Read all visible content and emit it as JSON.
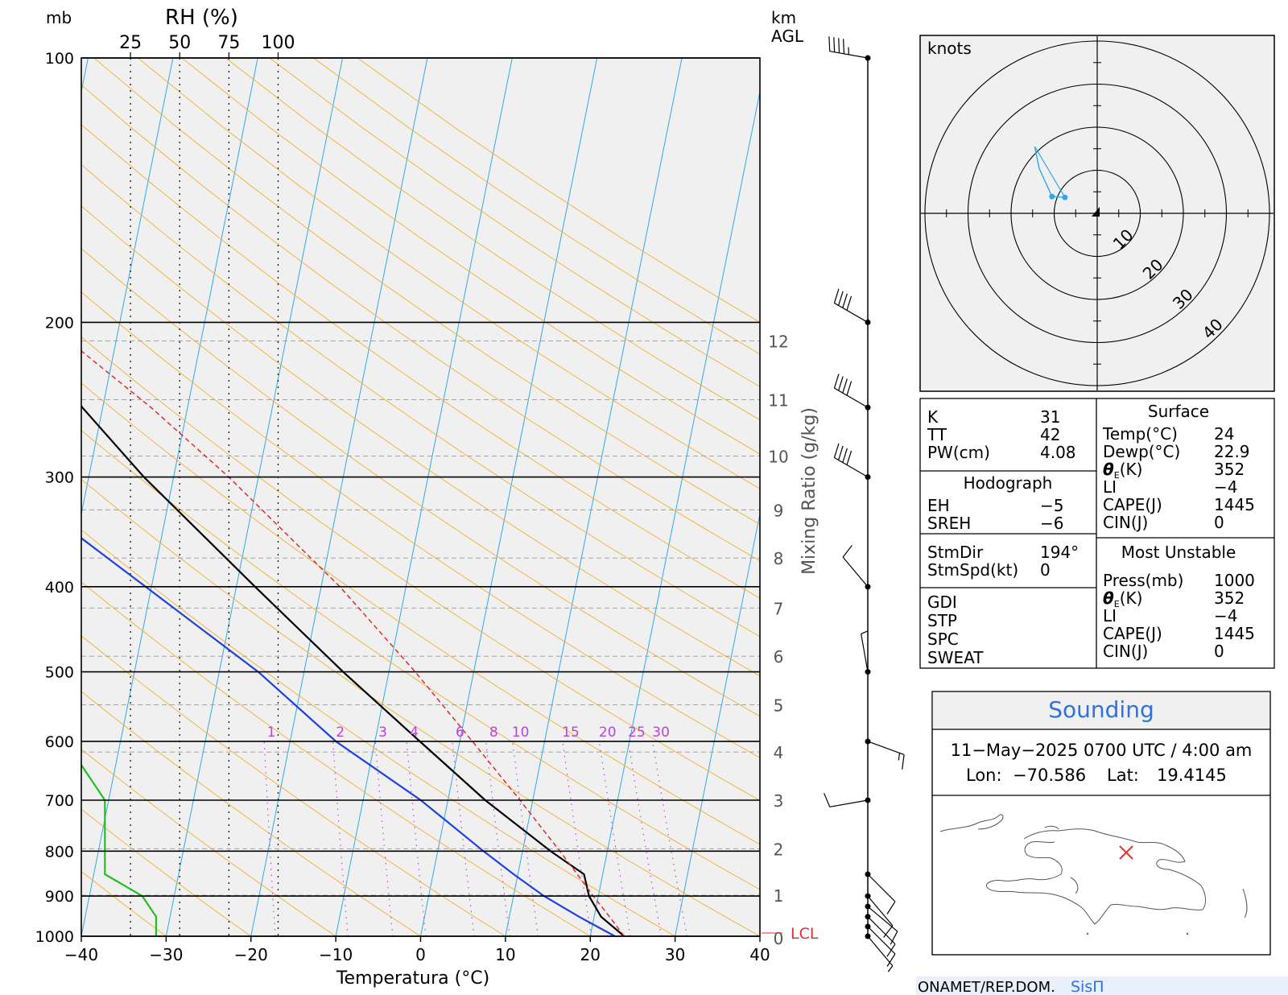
{
  "chart_data": {
    "type": "skew-t",
    "title": "",
    "xlabel": "Temperatura (°C)",
    "ylabel": "mb",
    "height_axis_label": "km\nAGL",
    "rh_axis_label": "RH (%)",
    "rh_ticks": [
      "25",
      "50",
      "75",
      "100"
    ],
    "mixing_ratio_label": "Mixing Ratio (g/kg)",
    "pressure_ticks": [
      100,
      200,
      300,
      400,
      500,
      600,
      700,
      800,
      900,
      1000
    ],
    "temperature_ticks": [
      -40,
      -30,
      -20,
      -10,
      0,
      10,
      20,
      30,
      40
    ],
    "xlim": [
      -40,
      40
    ],
    "ylim_mb": [
      1000,
      100
    ],
    "height_ticks_km": [
      0,
      1,
      2,
      3,
      4,
      5,
      6,
      7,
      8,
      9,
      10,
      11,
      12
    ],
    "mixing_ratio_ticks": [
      "1",
      "2",
      "3",
      "4",
      "6",
      "8",
      "10",
      "15",
      "20",
      "25",
      "30"
    ],
    "lcl_label": "LCL",
    "grid": true,
    "series": [
      {
        "name": "",
        "color": "#000000",
        "points": [
          [
            1000,
            24.0
          ],
          [
            950,
            20.8
          ],
          [
            900,
            18.9
          ],
          [
            850,
            17.8
          ],
          [
            800,
            13.3
          ],
          [
            700,
            4.4
          ],
          [
            600,
            -4.7
          ],
          [
            500,
            -15.4
          ],
          [
            400,
            -27.8
          ],
          [
            300,
            -43.5
          ],
          [
            250,
            -52.4
          ],
          [
            200,
            -62.0
          ],
          [
            100,
            -86.6
          ]
        ]
      },
      {
        "name": "",
        "color": "#2040e0",
        "points": [
          [
            1000,
            22.9
          ],
          [
            950,
            18.2
          ],
          [
            900,
            13.6
          ],
          [
            850,
            9.5
          ],
          [
            800,
            5.4
          ],
          [
            700,
            -3.2
          ],
          [
            600,
            -14.6
          ],
          [
            500,
            -25.4
          ],
          [
            400,
            -40.7
          ],
          [
            300,
            -60.4
          ],
          [
            250,
            -73.4
          ],
          [
            200,
            -99.9
          ],
          [
            100,
            -112.5
          ]
        ]
      },
      {
        "name": "",
        "color": "#e02020",
        "points": [
          [
            1000,
            24.0
          ],
          [
            950,
            21.8
          ],
          [
            900,
            19.4
          ],
          [
            850,
            17.0
          ],
          [
            800,
            14.4
          ],
          [
            700,
            8.5
          ],
          [
            600,
            1.5
          ],
          [
            500,
            -6.9
          ],
          [
            400,
            -17.8
          ],
          [
            300,
            -33.5
          ],
          [
            250,
            -44.3
          ],
          [
            200,
            -58.7
          ],
          [
            100,
            -91.6
          ]
        ]
      },
      {
        "name": "",
        "color": "#20c020",
        "rh_points": [
          [
            1000,
            38
          ],
          [
            950,
            38
          ],
          [
            900,
            31
          ],
          [
            850,
            12
          ],
          [
            800,
            12
          ],
          [
            700,
            12
          ],
          [
            600,
            -8
          ],
          [
            500,
            -12
          ],
          [
            400,
            -17
          ],
          [
            300,
            -15
          ],
          [
            250,
            -14
          ],
          [
            200,
            -48
          ],
          [
            100,
            -44
          ]
        ]
      }
    ],
    "wind_barbs_kt": [
      {
        "p": 1000,
        "spd": 5
      },
      {
        "p": 975,
        "spd": 10
      },
      {
        "p": 950,
        "spd": 10
      },
      {
        "p": 925,
        "spd": 10
      },
      {
        "p": 900,
        "spd": 10
      },
      {
        "p": 850,
        "spd": 10
      },
      {
        "p": 700,
        "spd": 10
      },
      {
        "p": 600,
        "spd": 15
      },
      {
        "p": 500,
        "spd": 5
      },
      {
        "p": 400,
        "spd": 10
      },
      {
        "p": 300,
        "spd": 40
      },
      {
        "p": 250,
        "spd": 40
      },
      {
        "p": 200,
        "spd": 40
      },
      {
        "p": 100,
        "spd": 45
      }
    ]
  },
  "hodograph": {
    "unit_label": "knots",
    "ring_labels": [
      "10",
      "20",
      "30",
      "40"
    ],
    "points_kt": [
      [
        -7.5,
        3.7
      ],
      [
        -10.5,
        3.9
      ],
      [
        -13.5,
        10.5
      ],
      [
        -14.5,
        15.5
      ]
    ]
  },
  "indices": {
    "left_rows": [
      {
        "label": "K",
        "value": "31"
      },
      {
        "label": "TT",
        "value": "42"
      },
      {
        "label": "PW(cm)",
        "value": "4.08"
      }
    ],
    "hodograph_header": "Hodograph",
    "hodograph_rows": [
      {
        "label": "EH",
        "value": "−5"
      },
      {
        "label": "SREH",
        "value": "−6"
      }
    ],
    "storm_rows": [
      {
        "label": "StmDir",
        "value": "194°"
      },
      {
        "label": "StmSpd(kt)",
        "value": "0"
      }
    ],
    "misc_rows": [
      "GDI",
      "STP",
      "SPC",
      "SWEAT"
    ],
    "surface_header": "Surface",
    "surface_rows": [
      {
        "label": "Temp(°C)",
        "value": "24"
      },
      {
        "label": "Dewp(°C)",
        "value": "22.9"
      },
      {
        "label": "θ",
        "sub": "E",
        "suffix": "(K)",
        "value": "352"
      },
      {
        "label": "LI",
        "value": "−4"
      },
      {
        "label": "CAPE(J)",
        "value": "1445"
      },
      {
        "label": "CIN(J)",
        "value": "0"
      }
    ],
    "mu_header": "Most Unstable",
    "mu_rows": [
      {
        "label": "Press(mb)",
        "value": "1000"
      },
      {
        "label": "θ",
        "sub": "E",
        "suffix": "(K)",
        "value": "352"
      },
      {
        "label": "LI",
        "value": "−4"
      },
      {
        "label": "CAPE(J)",
        "value": "1445"
      },
      {
        "label": "CIN(J)",
        "value": "0"
      }
    ]
  },
  "sounding_box": {
    "title": "Sounding",
    "datetime": "11−May−2025 0700  UTC / 4:00  am",
    "lon_label": "Lon:",
    "lon": "−70.586",
    "lat_label": "Lat:",
    "lat": "19.4145"
  },
  "footer": {
    "org": "ONAMET/REP.DOM.",
    "brand": "SisΠ"
  },
  "colors": {
    "dry_adiabat": "#f0b030",
    "isotherm": "#30a8e8",
    "mixing_ratio": "#c040e0",
    "panel_bg": "#f0f0f0",
    "temperature": "#000000",
    "dewpoint": "#2040e0",
    "parcel": "#e02020",
    "rh": "#20c020",
    "hodo_line": "#30a8e8",
    "station_marker": "#e03030",
    "brand_blue": "#3070e0"
  }
}
